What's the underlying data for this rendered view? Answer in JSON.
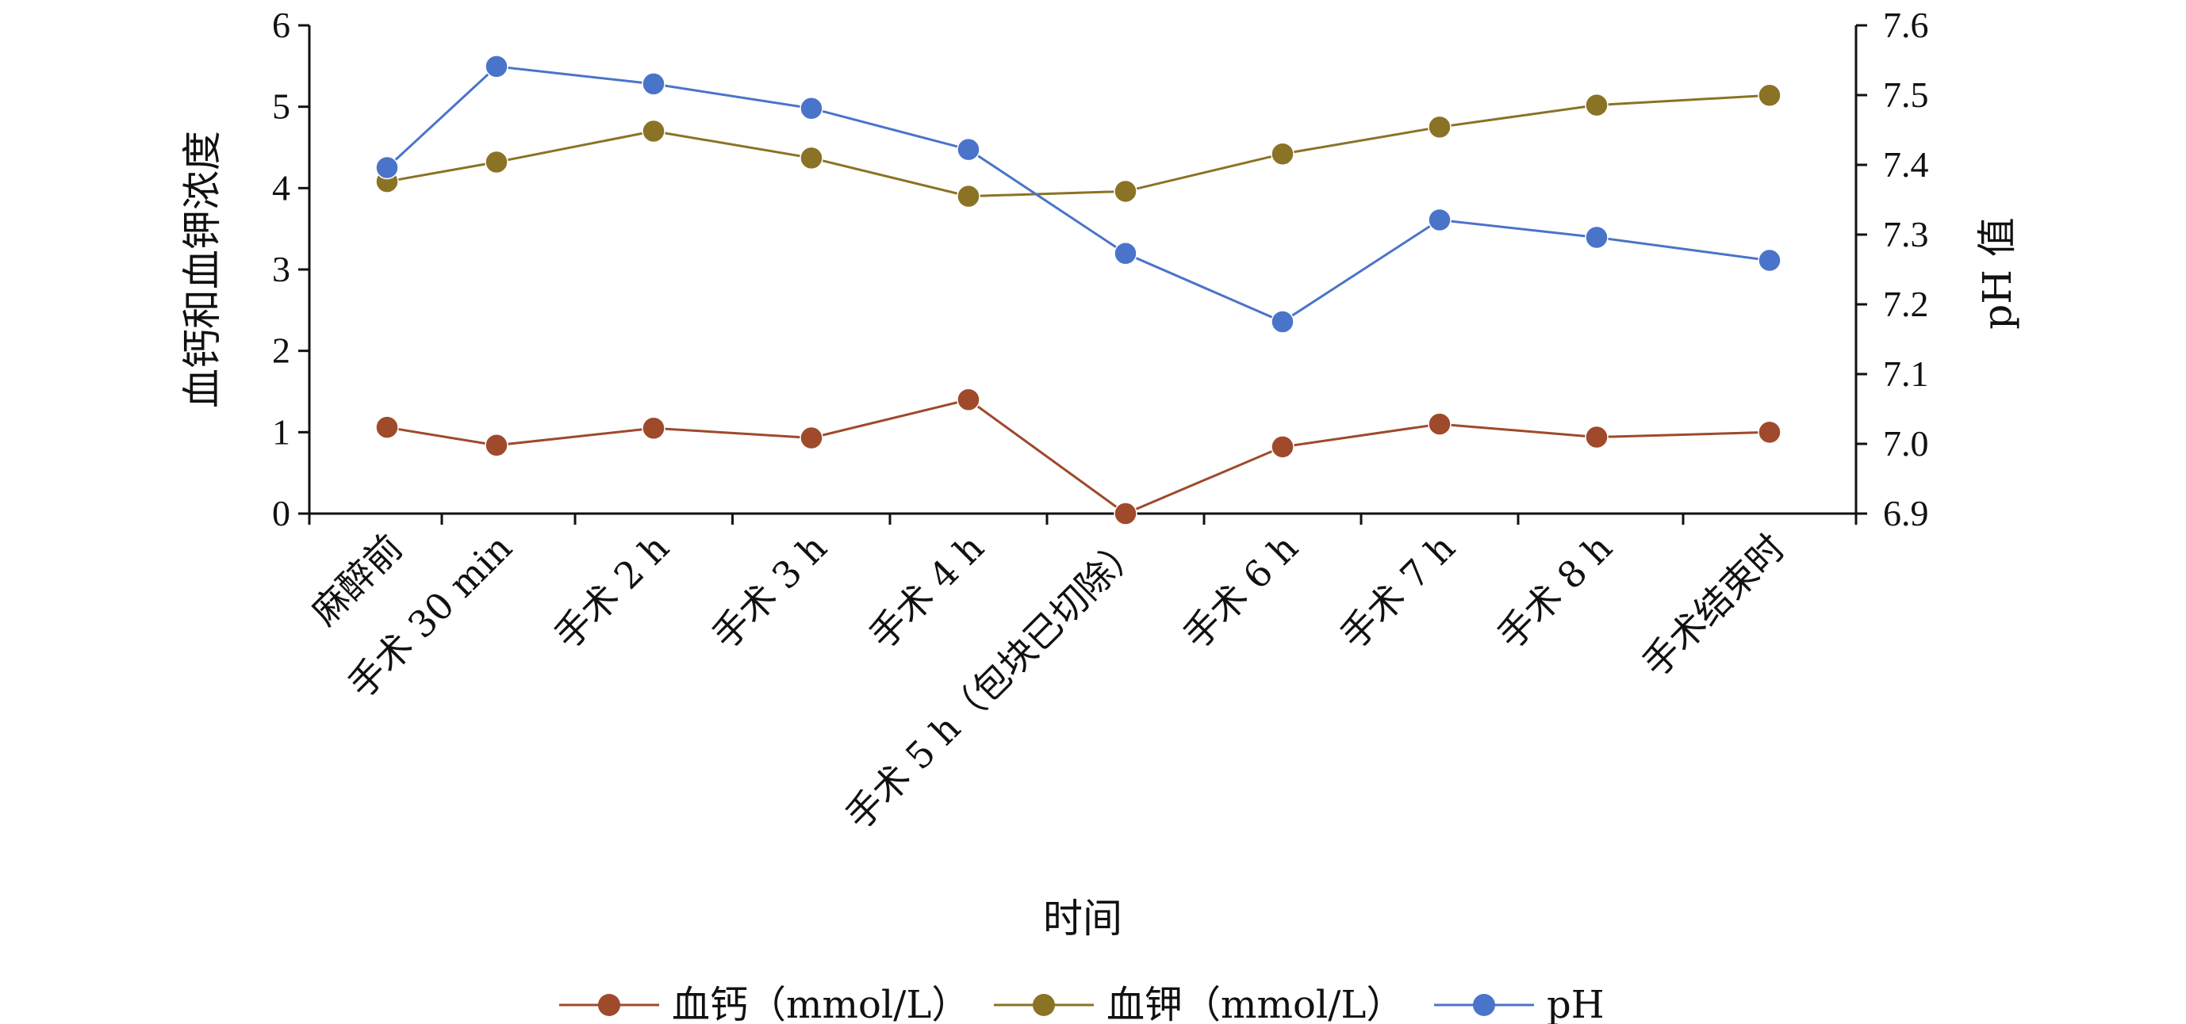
{
  "chart_data": {
    "type": "line",
    "xlabel": "时间",
    "ylabel": "血钙和血钾浓度",
    "y2label": "pH 值",
    "categories": [
      "麻醉前",
      "手术 30 min",
      "手术 2 h",
      "手术 3 h",
      "手术 4 h",
      "手术 5 h（包块已切除）",
      "手术 6 h",
      "手术 7 h",
      "手术 8 h",
      "手术结束时"
    ],
    "ylim": [
      0,
      6
    ],
    "y_ticks": [
      "0",
      "1",
      "2",
      "3",
      "4",
      "5",
      "6"
    ],
    "y2lim": [
      6.9,
      7.6
    ],
    "y2_ticks": [
      "6.9",
      "7.0",
      "7.1",
      "7.2",
      "7.3",
      "7.4",
      "7.5",
      "7.6"
    ],
    "grid": false,
    "legend": "bottom",
    "series": [
      {
        "name": "血钙（mmol/L）",
        "axis": "left",
        "color": "#9E4A2B",
        "values": [
          1.06,
          0.84,
          1.05,
          0.93,
          1.4,
          0.0,
          0.82,
          1.1,
          0.94,
          1.0
        ]
      },
      {
        "name": "血钾（mmol/L）",
        "axis": "left",
        "color": "#8A7325",
        "values": [
          4.08,
          4.32,
          4.7,
          4.37,
          3.9,
          3.96,
          4.42,
          4.75,
          5.02,
          5.14
        ]
      },
      {
        "name": "pH",
        "axis": "right",
        "color": "#4A74C9",
        "values": [
          7.396,
          7.541,
          7.516,
          7.481,
          7.422,
          7.273,
          7.175,
          7.321,
          7.296,
          7.263
        ]
      }
    ]
  }
}
